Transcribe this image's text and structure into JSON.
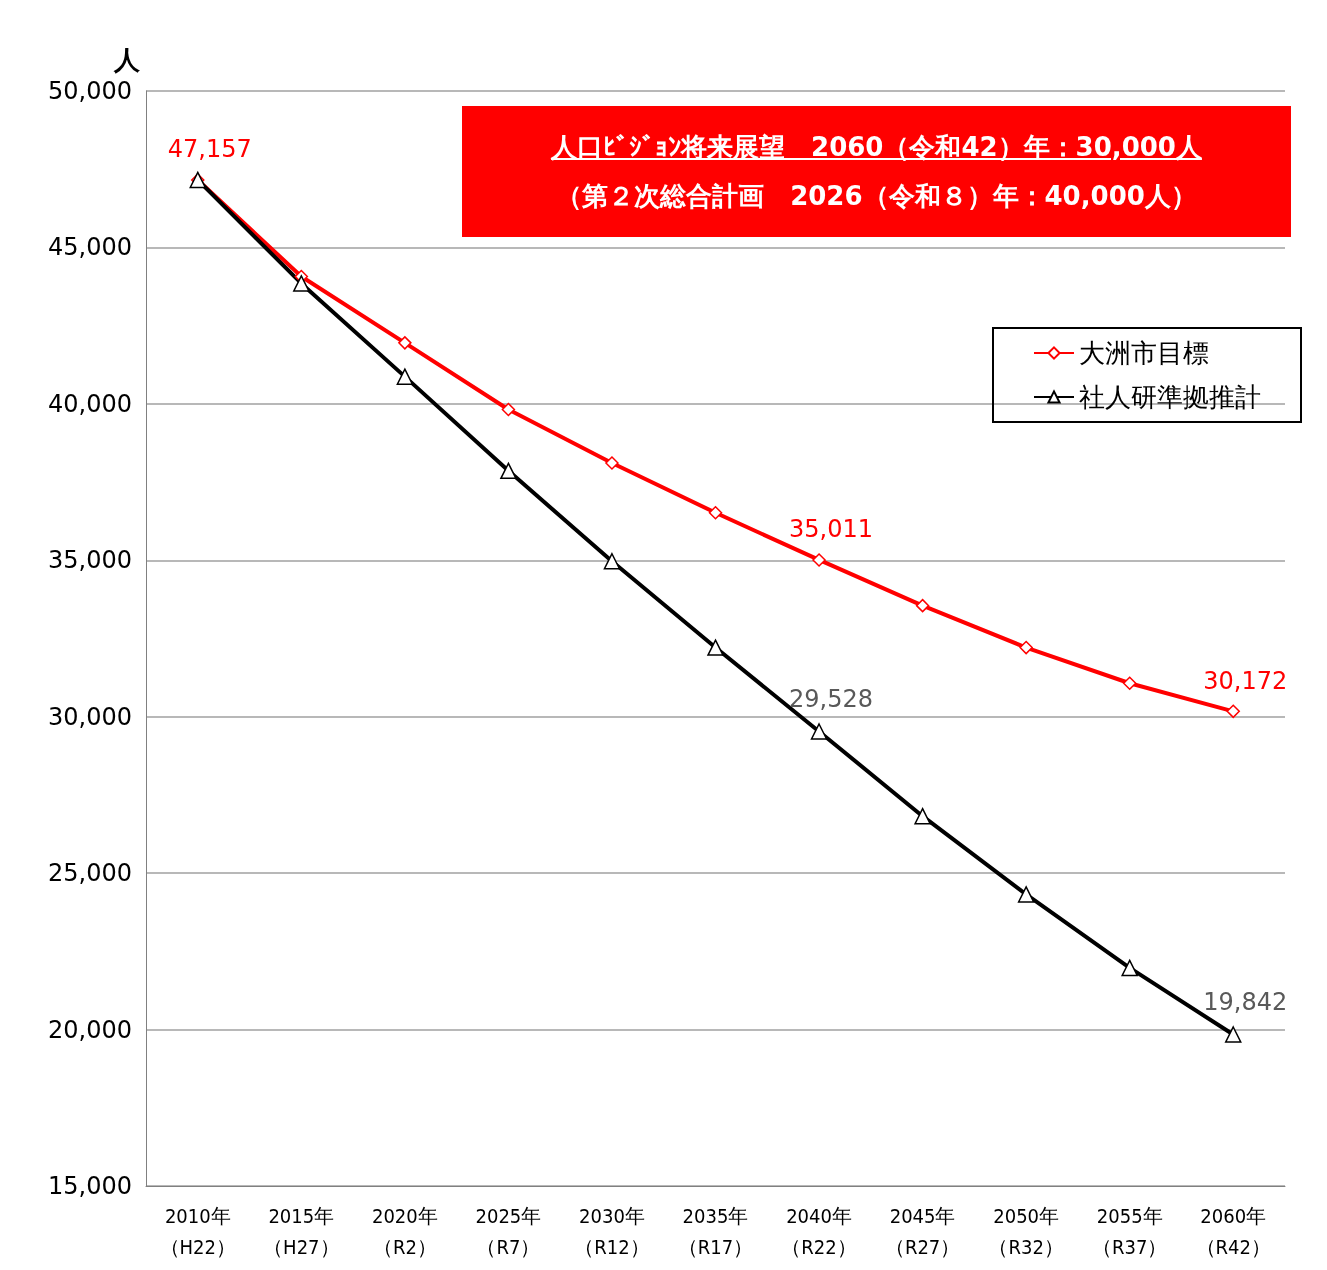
{
  "chart_data": {
    "type": "line",
    "ylabel": "人",
    "categories": [
      "2010年（H22）",
      "2015年（H27）",
      "2020年（R2）",
      "2025年（R7）",
      "2030年（R12）",
      "2035年（R17）",
      "2040年（R22）",
      "2045年（R27）",
      "2050年（R32）",
      "2055年（R37）",
      "2060年（R42）"
    ],
    "series": [
      {
        "name": "大洲市目標",
        "color": "#ff0000",
        "marker": "diamond",
        "values": [
          47157,
          44070,
          41950,
          39820,
          38110,
          36520,
          35011,
          33550,
          32210,
          31070,
          30172
        ],
        "value_labels": [
          "47,157",
          null,
          null,
          null,
          null,
          null,
          "35,011",
          null,
          null,
          null,
          "30,172"
        ]
      },
      {
        "name": "社人研準拠推計",
        "color": "#000000",
        "marker": "triangle",
        "values": [
          47157,
          43850,
          40870,
          37860,
          34970,
          32210,
          29528,
          26820,
          24320,
          21970,
          19842
        ],
        "value_labels": [
          null,
          null,
          null,
          null,
          null,
          null,
          "29,528",
          null,
          null,
          null,
          "19,842"
        ]
      }
    ],
    "ylim": [
      15000,
      50000
    ],
    "yticks": [
      {
        "value": 15000,
        "label": "15,000"
      },
      {
        "value": 20000,
        "label": "20,000"
      },
      {
        "value": 25000,
        "label": "25,000"
      },
      {
        "value": 30000,
        "label": "30,000"
      },
      {
        "value": 35000,
        "label": "35,000"
      },
      {
        "value": 40000,
        "label": "40,000"
      },
      {
        "value": 45000,
        "label": "45,000"
      },
      {
        "value": 50000,
        "label": "50,000"
      }
    ],
    "grid": "y",
    "legend": "top right",
    "line_style": "solid",
    "annotations": [
      "人口ﾋﾞｼﾞｮﾝ将来展望　2060（令和42）年：30,000人",
      "（第２次総合計画　2026（令和８）年：40,000人）"
    ]
  }
}
